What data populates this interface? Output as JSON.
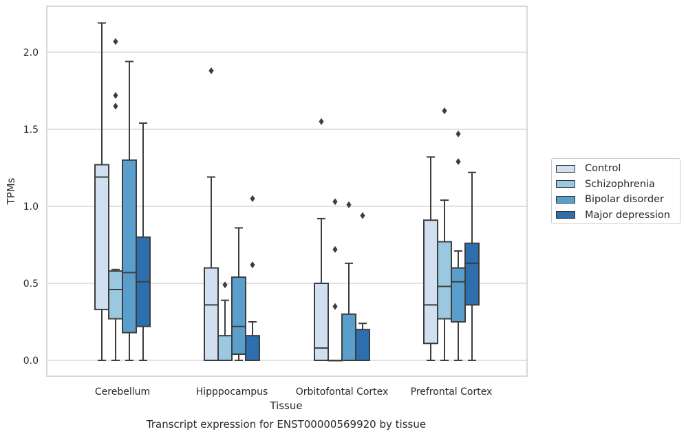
{
  "chart_data": {
    "type": "boxplot",
    "title": "Transcript expression for ENST00000569920 by tissue",
    "xlabel": "Tissue",
    "ylabel": "TPMs",
    "ylim": [
      -0.1,
      2.32
    ],
    "yticks": [
      "0.0",
      "0.5",
      "1.0",
      "1.5",
      "2.0"
    ],
    "ytick_values": [
      0.0,
      0.5,
      1.0,
      1.5,
      2.0
    ],
    "grid": "horizontal",
    "legend_position": "right",
    "categories": [
      "Cerebellum",
      "Hipppocampus",
      "Orbitofontal Cortex",
      "Prefrontal Cortex"
    ],
    "series": [
      {
        "name": "Control",
        "color": "#d1e0f0",
        "boxes": [
          {
            "whislo": 0.0,
            "q1": 0.33,
            "med": 1.19,
            "q3": 1.27,
            "whishi": 2.19,
            "fliers": []
          },
          {
            "whislo": 0.0,
            "q1": 0.0,
            "med": 0.36,
            "q3": 0.6,
            "whishi": 1.19,
            "fliers": [
              1.88
            ]
          },
          {
            "whislo": 0.0,
            "q1": 0.0,
            "med": 0.08,
            "q3": 0.5,
            "whishi": 0.92,
            "fliers": [
              1.55
            ]
          },
          {
            "whislo": 0.0,
            "q1": 0.11,
            "med": 0.36,
            "q3": 0.91,
            "whishi": 1.32,
            "fliers": []
          }
        ]
      },
      {
        "name": "Schizophrenia",
        "color": "#9ac8e0",
        "boxes": [
          {
            "whislo": 0.0,
            "q1": 0.27,
            "med": 0.46,
            "q3": 0.58,
            "whishi": 0.59,
            "fliers": [
              1.65,
              1.72,
              2.07
            ]
          },
          {
            "whislo": 0.0,
            "q1": 0.0,
            "med": 0.0,
            "q3": 0.16,
            "whishi": 0.39,
            "fliers": [
              0.49
            ]
          },
          {
            "whislo": 0.0,
            "q1": 0.0,
            "med": 0.0,
            "q3": 0.0,
            "whishi": 0.0,
            "fliers": [
              0.35,
              0.72,
              1.03
            ]
          },
          {
            "whislo": 0.0,
            "q1": 0.27,
            "med": 0.48,
            "q3": 0.77,
            "whishi": 1.04,
            "fliers": [
              1.62
            ]
          }
        ]
      },
      {
        "name": "Bipolar disorder",
        "color": "#5a9fcc",
        "boxes": [
          {
            "whislo": 0.0,
            "q1": 0.18,
            "med": 0.57,
            "q3": 1.3,
            "whishi": 1.94,
            "fliers": []
          },
          {
            "whislo": 0.0,
            "q1": 0.04,
            "med": 0.22,
            "q3": 0.54,
            "whishi": 0.86,
            "fliers": []
          },
          {
            "whislo": 0.0,
            "q1": 0.0,
            "med": 0.0,
            "q3": 0.3,
            "whishi": 0.63,
            "fliers": [
              1.01
            ]
          },
          {
            "whislo": 0.0,
            "q1": 0.25,
            "med": 0.51,
            "q3": 0.6,
            "whishi": 0.71,
            "fliers": [
              1.29,
              1.47
            ]
          }
        ]
      },
      {
        "name": "Major depression",
        "color": "#2c6eae",
        "boxes": [
          {
            "whislo": 0.0,
            "q1": 0.22,
            "med": 0.51,
            "q3": 0.8,
            "whishi": 1.54,
            "fliers": []
          },
          {
            "whislo": 0.0,
            "q1": 0.0,
            "med": 0.0,
            "q3": 0.16,
            "whishi": 0.25,
            "fliers": [
              0.62,
              1.05
            ]
          },
          {
            "whislo": 0.0,
            "q1": 0.0,
            "med": 0.0,
            "q3": 0.2,
            "whishi": 0.24,
            "fliers": [
              0.94
            ]
          },
          {
            "whislo": 0.0,
            "q1": 0.36,
            "med": 0.63,
            "q3": 0.76,
            "whishi": 1.22,
            "fliers": []
          }
        ]
      }
    ]
  }
}
